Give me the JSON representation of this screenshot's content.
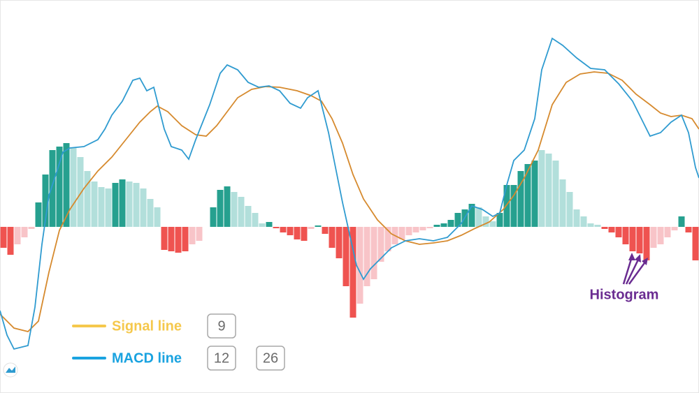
{
  "chart_data": {
    "type": "macd",
    "xlim": [
      0,
      1000
    ],
    "ylim": [
      -238,
      325
    ],
    "histogram": {
      "palette": [
        "#26a08f",
        "#b2dfdb",
        "#ef5350",
        "#f8c4c8"
      ],
      "values": [
        -30,
        -40,
        -25,
        -15,
        -3,
        35,
        75,
        110,
        115,
        120,
        113,
        100,
        80,
        65,
        57,
        55,
        63,
        68,
        65,
        63,
        55,
        40,
        28,
        -33,
        -35,
        -37,
        -35,
        -25,
        -20,
        0,
        28,
        53,
        58,
        50,
        43,
        30,
        20,
        5,
        7,
        -2,
        -8,
        -12,
        -18,
        -20,
        -3,
        2,
        -10,
        -30,
        -45,
        -85,
        -130,
        -110,
        -85,
        -75,
        -50,
        -35,
        -25,
        -18,
        -12,
        -8,
        -5,
        -2,
        3,
        5,
        10,
        20,
        25,
        33,
        28,
        15,
        8,
        20,
        60,
        60,
        80,
        90,
        95,
        110,
        105,
        95,
        68,
        50,
        25,
        15,
        5,
        3,
        -3,
        -8,
        -15,
        -25,
        -35,
        -38,
        -48,
        -30,
        -25,
        -15,
        -5,
        15,
        -8,
        -48
      ],
      "colors": [
        2,
        2,
        3,
        3,
        3,
        0,
        0,
        0,
        0,
        0,
        1,
        1,
        1,
        1,
        1,
        1,
        0,
        0,
        1,
        1,
        1,
        1,
        1,
        2,
        2,
        2,
        2,
        3,
        3,
        3,
        0,
        0,
        0,
        1,
        1,
        1,
        1,
        1,
        0,
        2,
        2,
        2,
        2,
        2,
        3,
        0,
        2,
        2,
        2,
        2,
        2,
        3,
        3,
        3,
        3,
        3,
        3,
        3,
        3,
        3,
        3,
        3,
        0,
        0,
        0,
        0,
        0,
        0,
        1,
        1,
        1,
        0,
        0,
        0,
        0,
        0,
        0,
        1,
        1,
        1,
        1,
        1,
        1,
        1,
        1,
        1,
        2,
        2,
        2,
        2,
        2,
        2,
        2,
        3,
        3,
        3,
        3,
        0,
        2,
        2
      ]
    },
    "series": [
      {
        "name": "Signal line",
        "color": "#d68a2e",
        "legend_color": "#f5c84c",
        "params": [
          9
        ],
        "x": [
          0,
          20,
          40,
          55,
          70,
          85,
          100,
          120,
          140,
          160,
          180,
          200,
          215,
          225,
          240,
          260,
          280,
          295,
          310,
          325,
          340,
          360,
          380,
          400,
          425,
          445,
          460,
          475,
          490,
          505,
          520,
          540,
          560,
          580,
          600,
          620,
          640,
          660,
          680,
          700,
          720,
          735,
          750,
          770,
          790,
          810,
          830,
          850,
          870,
          890,
          910,
          930,
          945,
          960,
          975,
          990,
          1000
        ],
        "values": [
          -125,
          -145,
          -150,
          -135,
          -65,
          -5,
          25,
          55,
          80,
          100,
          125,
          150,
          165,
          173,
          165,
          145,
          132,
          130,
          145,
          165,
          185,
          197,
          201,
          200,
          195,
          188,
          180,
          155,
          120,
          75,
          40,
          10,
          -10,
          -20,
          -25,
          -23,
          -20,
          -12,
          -2,
          7,
          25,
          45,
          70,
          110,
          175,
          207,
          219,
          222,
          220,
          210,
          190,
          175,
          163,
          158,
          160,
          155,
          140
        ]
      },
      {
        "name": "MACD line",
        "color": "#2f9bd0",
        "legend_color": "#1aa3e0",
        "params": [
          12,
          26
        ],
        "x": [
          0,
          10,
          20,
          40,
          50,
          60,
          70,
          80,
          90,
          100,
          120,
          140,
          150,
          160,
          175,
          190,
          200,
          210,
          220,
          235,
          245,
          260,
          270,
          280,
          290,
          300,
          315,
          325,
          340,
          355,
          370,
          385,
          400,
          415,
          430,
          440,
          455,
          470,
          480,
          490,
          500,
          510,
          520,
          530,
          545,
          560,
          580,
          600,
          620,
          640,
          660,
          675,
          690,
          705,
          715,
          725,
          735,
          750,
          765,
          775,
          790,
          805,
          825,
          845,
          865,
          885,
          905,
          920,
          930,
          945,
          960,
          975,
          985,
          995,
          1000
        ],
        "values": [
          -120,
          -155,
          -175,
          -170,
          -115,
          -25,
          45,
          75,
          107,
          113,
          115,
          125,
          140,
          160,
          180,
          210,
          213,
          195,
          200,
          140,
          115,
          110,
          97,
          125,
          150,
          175,
          220,
          232,
          225,
          207,
          200,
          202,
          195,
          177,
          170,
          185,
          195,
          135,
          85,
          35,
          -10,
          -55,
          -75,
          -60,
          -45,
          -30,
          -20,
          -17,
          -20,
          -15,
          5,
          30,
          25,
          15,
          20,
          60,
          95,
          110,
          155,
          225,
          270,
          260,
          242,
          227,
          225,
          205,
          180,
          150,
          130,
          135,
          150,
          160,
          135,
          85,
          70
        ]
      }
    ],
    "annotation": "Histogram"
  }
}
